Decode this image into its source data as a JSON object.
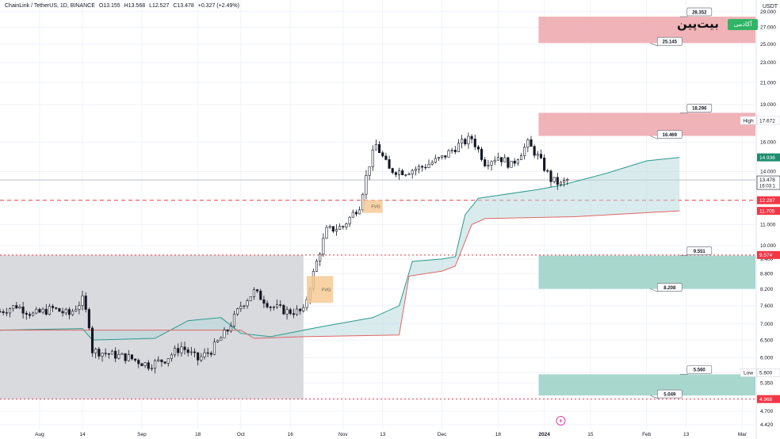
{
  "header": {
    "symbol": "ChainLink / TetherUS, 1D, BINANCE",
    "open": "O13.155",
    "high": "H13.568",
    "low": "L12.527",
    "close": "C13.478",
    "change": "+0.327 (+2.49%)",
    "currency": "USDT"
  },
  "logo": {
    "text": "بیت‌پین",
    "badge": "آکادمی"
  },
  "colors": {
    "up": "#131722",
    "down": "#131722",
    "cloud_fill": "#b3d7dc",
    "upper_line": "#2a9a8c",
    "lower_line": "#e06666",
    "resistance_zone": "#eda6ab",
    "support_zone": "#99d0c6",
    "fvg_zone": "#f5c78e",
    "range_box": "#d2d4d8",
    "price_line": "#f23645"
  },
  "chart_data": {
    "type": "candlestick",
    "symbol": "LINK/USDT",
    "timeframe": "1D",
    "yscale": "log",
    "ylim": [
      4.42,
      29.5
    ],
    "y_ticks": [
      29.0,
      27.0,
      25.0,
      23.0,
      21.0,
      19.0,
      17.672,
      16.0,
      14.936,
      14.0,
      13.478,
      12.287,
      11.705,
      11.0,
      10.0,
      9.574,
      9.4,
      8.8,
      8.2,
      7.6,
      7.0,
      6.5,
      6.0,
      5.6,
      5.35,
      5.0,
      4.968,
      4.7,
      4.42
    ],
    "y_tick_labels": [
      "29.000",
      "27.000",
      "25.000",
      "23.000",
      "21.000",
      "19.000",
      "17.672",
      "16.000",
      "14.936",
      "14.000",
      "13.478",
      "12.287",
      "11.705",
      "11.000",
      "10.000",
      "9.574",
      "9.400",
      "8.800",
      "8.200",
      "7.600",
      "7.000",
      "6.500",
      "6.000",
      "5.600",
      "5.350",
      "5.000",
      "4.968",
      "4.700",
      "4.420"
    ],
    "x_start": "2023-07-20",
    "x_end": "2024-03-05",
    "x_ticks": [
      {
        "date": "2023-08-01",
        "label": "Aug"
      },
      {
        "date": "2023-08-14",
        "label": "14"
      },
      {
        "date": "2023-09-01",
        "label": "Sep"
      },
      {
        "date": "2023-09-18",
        "label": "18"
      },
      {
        "date": "2023-10-01",
        "label": "Oct"
      },
      {
        "date": "2023-10-16",
        "label": "16"
      },
      {
        "date": "2023-11-01",
        "label": "Nov"
      },
      {
        "date": "2023-11-13",
        "label": "13"
      },
      {
        "date": "2023-12-01",
        "label": "Dec"
      },
      {
        "date": "2023-12-18",
        "label": "18"
      },
      {
        "date": "2024-01-01",
        "label": "2024"
      },
      {
        "date": "2024-01-15",
        "label": "15"
      },
      {
        "date": "2024-02-01",
        "label": "Feb"
      },
      {
        "date": "2024-02-13",
        "label": "13"
      },
      {
        "date": "2024-03-01",
        "label": "Mar"
      }
    ],
    "price_path": [
      [
        "2023-07-20",
        7.4
      ],
      [
        "2023-07-25",
        7.6
      ],
      [
        "2023-07-30",
        7.3
      ],
      [
        "2023-08-05",
        7.5
      ],
      [
        "2023-08-10",
        7.3
      ],
      [
        "2023-08-14",
        7.8
      ],
      [
        "2023-08-16",
        7.0
      ],
      [
        "2023-08-17",
        6.2
      ],
      [
        "2023-08-22",
        6.1
      ],
      [
        "2023-08-28",
        6.0
      ],
      [
        "2023-09-03",
        5.8
      ],
      [
        "2023-09-08",
        5.95
      ],
      [
        "2023-09-13",
        6.3
      ],
      [
        "2023-09-18",
        5.95
      ],
      [
        "2023-09-22",
        6.2
      ],
      [
        "2023-09-27",
        6.8
      ],
      [
        "2023-10-01",
        7.6
      ],
      [
        "2023-10-05",
        8.1
      ],
      [
        "2023-10-10",
        7.6
      ],
      [
        "2023-10-15",
        7.4
      ],
      [
        "2023-10-20",
        7.4
      ],
      [
        "2023-10-23",
        8.8
      ],
      [
        "2023-10-27",
        10.7
      ],
      [
        "2023-11-01",
        10.9
      ],
      [
        "2023-11-06",
        12.0
      ],
      [
        "2023-11-09",
        14.5
      ],
      [
        "2023-11-11",
        15.8
      ],
      [
        "2023-11-15",
        14.1
      ],
      [
        "2023-11-20",
        14.0
      ],
      [
        "2023-11-25",
        14.3
      ],
      [
        "2023-12-01",
        14.9
      ],
      [
        "2023-12-06",
        15.8
      ],
      [
        "2023-12-10",
        16.3
      ],
      [
        "2023-12-14",
        14.6
      ],
      [
        "2023-12-18",
        15.0
      ],
      [
        "2023-12-22",
        14.4
      ],
      [
        "2023-12-27",
        15.9
      ],
      [
        "2023-12-30",
        15.0
      ],
      [
        "2024-01-03",
        13.5
      ],
      [
        "2024-01-06",
        13.2
      ],
      [
        "2024-01-08",
        13.478
      ]
    ],
    "ichimoku_upper": [
      [
        "2023-07-20",
        6.8
      ],
      [
        "2023-08-14",
        6.85
      ],
      [
        "2023-08-17",
        6.5
      ],
      [
        "2023-09-05",
        6.55
      ],
      [
        "2023-09-15",
        7.1
      ],
      [
        "2023-09-25",
        7.2
      ],
      [
        "2023-10-01",
        6.7
      ],
      [
        "2023-10-10",
        6.6
      ],
      [
        "2023-10-25",
        6.9
      ],
      [
        "2023-11-10",
        7.2
      ],
      [
        "2023-11-18",
        7.6
      ],
      [
        "2023-11-22",
        9.3
      ],
      [
        "2023-12-01",
        9.4
      ],
      [
        "2023-12-05",
        9.5
      ],
      [
        "2023-12-08",
        11.5
      ],
      [
        "2023-12-12",
        12.4
      ],
      [
        "2023-12-30",
        12.9
      ],
      [
        "2024-01-06",
        13.15
      ],
      [
        "2024-01-20",
        13.9
      ],
      [
        "2024-02-01",
        14.7
      ],
      [
        "2024-02-11",
        14.936
      ]
    ],
    "ichimoku_lower": [
      [
        "2023-07-20",
        6.8
      ],
      [
        "2023-10-01",
        6.8
      ],
      [
        "2023-10-05",
        6.55
      ],
      [
        "2023-10-20",
        6.6
      ],
      [
        "2023-11-18",
        6.65
      ],
      [
        "2023-11-21",
        8.7
      ],
      [
        "2023-12-01",
        8.9
      ],
      [
        "2023-12-05",
        9.1
      ],
      [
        "2023-12-10",
        11.0
      ],
      [
        "2023-12-14",
        11.3
      ],
      [
        "2024-01-10",
        11.4
      ],
      [
        "2024-02-11",
        11.705
      ]
    ],
    "zones": [
      {
        "type": "resistance",
        "from": 25.145,
        "to": 28.352,
        "labels": [
          "28.352",
          "25.145"
        ]
      },
      {
        "type": "resistance",
        "from": 16.469,
        "to": 18.296,
        "labels": [
          "18.296",
          "16.469"
        ]
      },
      {
        "type": "support",
        "from": 8.208,
        "to": 9.551,
        "labels": [
          "9.551",
          "8.208"
        ]
      },
      {
        "type": "support",
        "from": 5.049,
        "to": 5.56,
        "labels": [
          "5.560",
          "5.049"
        ]
      }
    ],
    "fvg_boxes": [
      {
        "label": "FVG",
        "x0": "2023-10-21",
        "x1": "2023-10-29",
        "y0": 7.7,
        "y1": 8.7
      },
      {
        "label": "FVG",
        "x0": "2023-11-07",
        "x1": "2023-11-13",
        "y0": 11.6,
        "y1": 12.3
      }
    ],
    "range_box": {
      "x0": "2023-07-20",
      "x1": "2023-10-20",
      "y0": 4.968,
      "y1": 9.574
    },
    "horizontal_levels": [
      {
        "value": 12.287,
        "label": "12.287",
        "style": "dashed"
      },
      {
        "value": 9.574,
        "label": "9.574",
        "style": "dotted"
      },
      {
        "value": 4.968,
        "label": "4.968",
        "style": "dotted"
      }
    ],
    "axis_markers": [
      {
        "value": 17.672,
        "label": "17.672",
        "tag": "High"
      },
      {
        "value": 14.936,
        "label": "14.936",
        "tag": ""
      },
      {
        "value": 13.478,
        "label": "13.478",
        "tag": "",
        "sub": "16:03:1"
      },
      {
        "value": 12.287,
        "label": "12.287",
        "tag": ""
      },
      {
        "value": 11.705,
        "label": "11.705",
        "tag": ""
      },
      {
        "value": 9.574,
        "label": "9.574",
        "tag": ""
      },
      {
        "value": 5.6,
        "label": "5.600",
        "tag": "Low"
      },
      {
        "value": 4.968,
        "label": "4.968",
        "tag": ""
      }
    ]
  }
}
